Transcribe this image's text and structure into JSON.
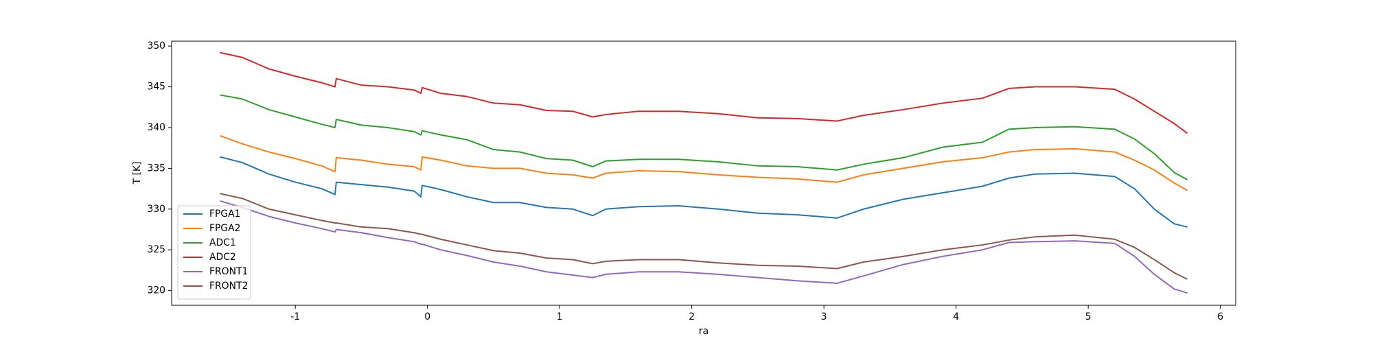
{
  "chart_data": {
    "type": "line",
    "x_label": "ra",
    "y_label": "T [K]",
    "x": [
      -1.57,
      -1.4,
      -1.2,
      -1.0,
      -0.8,
      -0.7,
      -0.69,
      -0.5,
      -0.3,
      -0.1,
      -0.05,
      -0.04,
      0.1,
      0.3,
      0.5,
      0.7,
      0.9,
      1.1,
      1.25,
      1.35,
      1.6,
      1.9,
      2.2,
      2.5,
      2.8,
      3.1,
      3.3,
      3.6,
      3.9,
      4.2,
      4.4,
      4.6,
      4.9,
      5.2,
      5.35,
      5.5,
      5.65,
      5.75
    ],
    "series": [
      {
        "name": "FPGA1",
        "color": "#1f77b4",
        "values": [
          336.4,
          335.7,
          334.3,
          333.3,
          332.5,
          331.8,
          333.3,
          333.0,
          332.7,
          332.2,
          331.5,
          332.9,
          332.4,
          331.5,
          330.8,
          330.8,
          330.2,
          330.0,
          329.2,
          330.0,
          330.3,
          330.4,
          330.0,
          329.5,
          329.3,
          328.9,
          330.0,
          331.2,
          332.0,
          332.8,
          333.8,
          334.3,
          334.4,
          334.0,
          332.5,
          330.0,
          328.2,
          327.8
        ]
      },
      {
        "name": "FPGA2",
        "color": "#ff7f0e",
        "values": [
          339.0,
          338.0,
          337.0,
          336.2,
          335.3,
          334.6,
          336.3,
          336.0,
          335.5,
          335.2,
          334.8,
          336.4,
          336.0,
          335.3,
          335.0,
          335.0,
          334.4,
          334.2,
          333.8,
          334.4,
          334.7,
          334.6,
          334.2,
          333.9,
          333.7,
          333.3,
          334.2,
          335.0,
          335.8,
          336.3,
          337.0,
          337.3,
          337.4,
          337.0,
          336.0,
          334.8,
          333.2,
          332.3
        ]
      },
      {
        "name": "ADC1",
        "color": "#2ca02c",
        "values": [
          344.0,
          343.5,
          342.2,
          341.3,
          340.4,
          340.0,
          341.0,
          340.3,
          340.0,
          339.5,
          339.1,
          339.6,
          339.1,
          338.5,
          337.3,
          337.0,
          336.2,
          336.0,
          335.2,
          335.9,
          336.1,
          336.1,
          335.8,
          335.3,
          335.2,
          334.8,
          335.5,
          336.3,
          337.6,
          338.2,
          339.8,
          340.0,
          340.1,
          339.8,
          338.6,
          336.8,
          334.5,
          333.6
        ]
      },
      {
        "name": "ADC2",
        "color": "#d62728",
        "values": [
          349.2,
          348.6,
          347.2,
          346.3,
          345.5,
          345.0,
          346.0,
          345.2,
          345.0,
          344.6,
          344.2,
          344.9,
          344.2,
          343.8,
          343.0,
          342.8,
          342.1,
          342.0,
          341.3,
          341.6,
          342.0,
          342.0,
          341.7,
          341.2,
          341.1,
          340.8,
          341.5,
          342.2,
          343.0,
          343.6,
          344.8,
          345.0,
          345.0,
          344.7,
          343.5,
          342.0,
          340.5,
          339.3
        ]
      },
      {
        "name": "FRONT1",
        "color": "#9467bd",
        "values": [
          331.0,
          330.2,
          329.1,
          328.3,
          327.6,
          327.2,
          327.5,
          327.1,
          326.5,
          326.0,
          325.7,
          325.7,
          325.0,
          324.3,
          323.5,
          323.0,
          322.3,
          321.9,
          321.6,
          322.0,
          322.3,
          322.3,
          322.0,
          321.6,
          321.2,
          320.9,
          321.8,
          323.2,
          324.2,
          325.0,
          325.9,
          326.0,
          326.1,
          325.8,
          324.2,
          322.0,
          320.2,
          319.7
        ]
      },
      {
        "name": "FRONT2",
        "color": "#8c564b",
        "values": [
          331.9,
          331.3,
          330.0,
          329.3,
          328.6,
          328.3,
          328.3,
          327.8,
          327.6,
          327.1,
          326.9,
          326.9,
          326.3,
          325.6,
          324.9,
          324.6,
          324.0,
          323.8,
          323.3,
          323.6,
          323.8,
          323.8,
          323.4,
          323.1,
          323.0,
          322.7,
          323.5,
          324.2,
          325.0,
          325.6,
          326.2,
          326.6,
          326.8,
          326.3,
          325.3,
          323.8,
          322.2,
          321.4
        ]
      }
    ],
    "xlim": [
      -1.936,
      6.116
    ],
    "xticks": [
      -1,
      0,
      1,
      2,
      3,
      4,
      5,
      6
    ],
    "ylim": [
      318.2,
      350.6
    ],
    "yticks": [
      320,
      325,
      330,
      335,
      340,
      345,
      350
    ],
    "legend": "lower left",
    "grid": false
  }
}
